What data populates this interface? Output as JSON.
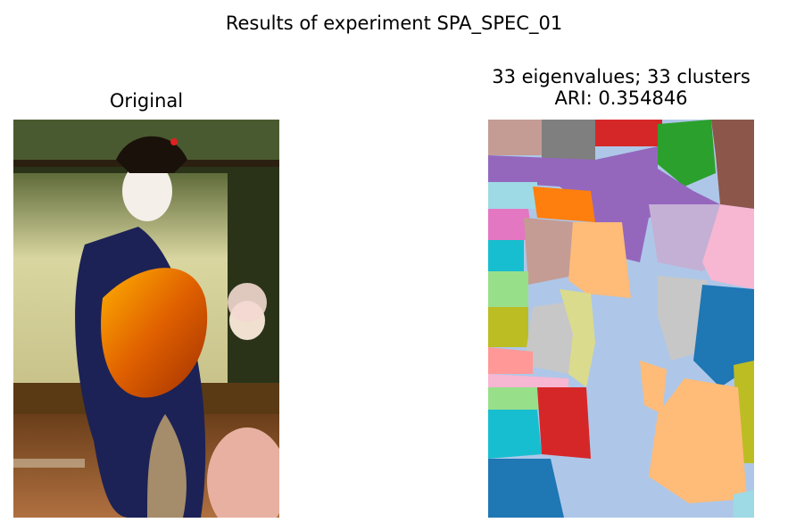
{
  "figure": {
    "suptitle": "Results of experiment SPA_SPEC_01"
  },
  "panels": {
    "left": {
      "title": "Original"
    },
    "right": {
      "title_line1": "33 eigenvalues; 33 clusters",
      "title_line2": "ARI: 0.354846"
    }
  },
  "colors": {
    "tab20": [
      "#1f77b4",
      "#aec7e8",
      "#ff7f0e",
      "#ffbb78",
      "#2ca02c",
      "#98df8a",
      "#d62728",
      "#ff9896",
      "#9467bd",
      "#c5b0d5",
      "#8c564b",
      "#c49c94",
      "#e377c2",
      "#f7b6d2",
      "#7f7f7f",
      "#c7c7c7",
      "#bcbd22",
      "#dbdb8d",
      "#17becf",
      "#9edae5"
    ]
  }
}
